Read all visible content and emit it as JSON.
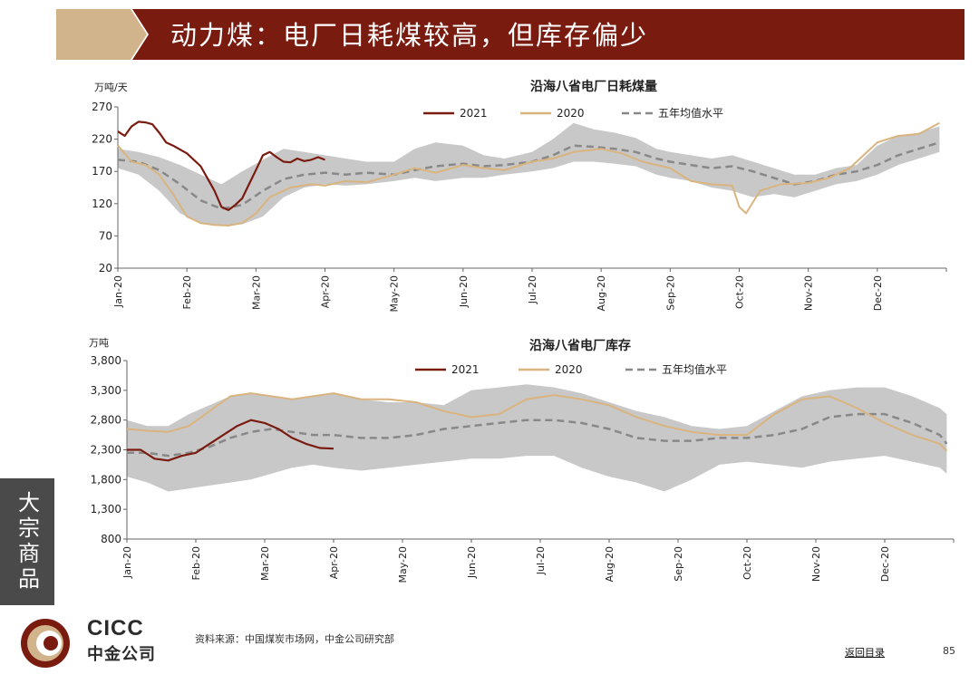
{
  "header": {
    "title": "动力煤：电厂日耗煤较高，但库存偏少",
    "colors": {
      "tan": "#d2b48c",
      "dark_red": "#7a1b10"
    }
  },
  "side_tab": {
    "label": "大宗商品"
  },
  "logo": {
    "en": "CICC",
    "cn": "中金公司",
    "colors": [
      "#7a1b10",
      "#d2b48c"
    ]
  },
  "footer": {
    "source": "资料来源：中国煤炭市场网，中金公司研究部",
    "back_link": "返回目录",
    "page_number": "85"
  },
  "chart_data": [
    {
      "type": "line",
      "title": "沿海八省电厂日耗煤量",
      "unit_label": "万吨/天",
      "ylim": [
        20,
        270
      ],
      "yticks": [
        "20",
        "70",
        "120",
        "170",
        "220",
        "270"
      ],
      "ytick_values": [
        20,
        70,
        120,
        170,
        220,
        270
      ],
      "months": [
        "Jan-20",
        "Feb-20",
        "Mar-20",
        "Apr-20",
        "May-20",
        "Jun-20",
        "Jul-20",
        "Aug-20",
        "Sep-20",
        "Oct-20",
        "Nov-20",
        "Dec-20"
      ],
      "legend": {
        "position": "top-center",
        "items": [
          "2021",
          "2020",
          "五年均值水平"
        ]
      },
      "colors": {
        "s2021": "#7a1b10",
        "s2020": "#d9b47f",
        "avg": "#888888",
        "band": "#c8c8c8"
      },
      "series": [
        {
          "name": "2021",
          "style": "solid",
          "x": [
            0,
            0.1,
            0.2,
            0.3,
            0.4,
            0.5,
            0.6,
            0.7,
            0.8,
            1.0,
            1.2,
            1.4,
            1.5,
            1.6,
            1.7,
            1.8,
            1.9,
            2.0,
            2.1,
            2.2,
            2.3,
            2.4,
            2.5,
            2.6,
            2.7,
            2.8,
            2.9,
            3.0
          ],
          "y": [
            232,
            225,
            240,
            247,
            246,
            243,
            230,
            215,
            210,
            198,
            178,
            140,
            115,
            110,
            118,
            128,
            150,
            172,
            195,
            200,
            192,
            185,
            184,
            190,
            186,
            188,
            192,
            188
          ]
        },
        {
          "name": "2020",
          "style": "solid",
          "x": [
            0,
            0.2,
            0.4,
            0.6,
            0.8,
            1.0,
            1.2,
            1.4,
            1.6,
            1.8,
            2.0,
            2.2,
            2.5,
            2.8,
            3.0,
            3.3,
            3.6,
            4.0,
            4.3,
            4.6,
            5.0,
            5.3,
            5.6,
            6.0,
            6.3,
            6.6,
            7.0,
            7.3,
            7.6,
            8.0,
            8.3,
            8.6,
            8.9,
            9.0,
            9.1,
            9.3,
            9.6,
            10.0,
            10.3,
            10.6,
            11.0,
            11.3,
            11.6,
            11.9
          ],
          "y": [
            210,
            185,
            180,
            165,
            135,
            100,
            90,
            87,
            86,
            90,
            105,
            130,
            145,
            150,
            148,
            155,
            153,
            165,
            175,
            168,
            180,
            175,
            172,
            185,
            190,
            200,
            205,
            198,
            185,
            175,
            155,
            150,
            148,
            115,
            105,
            140,
            150,
            152,
            160,
            175,
            215,
            225,
            228,
            245
          ]
        },
        {
          "name": "五年均值水平",
          "style": "dashed",
          "x": [
            0,
            0.3,
            0.6,
            0.9,
            1.2,
            1.5,
            1.8,
            2.1,
            2.4,
            2.7,
            3.0,
            3.3,
            3.6,
            4.0,
            4.3,
            4.6,
            5.0,
            5.3,
            5.6,
            6.0,
            6.3,
            6.6,
            6.9,
            7.2,
            7.5,
            7.8,
            8.0,
            8.3,
            8.6,
            8.9,
            9.2,
            9.5,
            9.8,
            10.1,
            10.4,
            10.7,
            11.0,
            11.3,
            11.6,
            11.9
          ],
          "y": [
            188,
            185,
            172,
            150,
            125,
            112,
            118,
            140,
            158,
            165,
            168,
            165,
            168,
            165,
            172,
            178,
            182,
            178,
            180,
            185,
            195,
            210,
            208,
            205,
            200,
            190,
            185,
            180,
            175,
            178,
            170,
            160,
            150,
            155,
            165,
            170,
            180,
            195,
            205,
            215
          ]
        }
      ],
      "band": {
        "name": "五年区间",
        "x": [
          0,
          0.3,
          0.6,
          0.9,
          1.2,
          1.5,
          1.8,
          2.1,
          2.4,
          2.7,
          3.0,
          3.3,
          3.6,
          4.0,
          4.3,
          4.6,
          5.0,
          5.3,
          5.6,
          6.0,
          6.3,
          6.6,
          6.9,
          7.2,
          7.5,
          7.8,
          8.0,
          8.3,
          8.6,
          8.9,
          9.2,
          9.5,
          9.8,
          10.1,
          10.4,
          10.7,
          11.0,
          11.3,
          11.6,
          11.9
        ],
        "upper": [
          205,
          200,
          192,
          180,
          165,
          150,
          170,
          188,
          205,
          200,
          195,
          190,
          185,
          185,
          205,
          215,
          210,
          195,
          190,
          200,
          220,
          245,
          235,
          230,
          222,
          205,
          200,
          195,
          190,
          195,
          185,
          175,
          165,
          165,
          175,
          180,
          210,
          225,
          230,
          240
        ],
        "lower": [
          175,
          165,
          140,
          105,
          90,
          85,
          88,
          100,
          130,
          145,
          150,
          148,
          150,
          155,
          160,
          155,
          160,
          160,
          165,
          170,
          175,
          185,
          185,
          182,
          178,
          165,
          160,
          155,
          145,
          140,
          130,
          135,
          130,
          140,
          150,
          155,
          165,
          180,
          190,
          200
        ]
      }
    },
    {
      "type": "line",
      "title": "沿海八省电厂库存",
      "unit_label": "万吨",
      "ylim": [
        800,
        3800
      ],
      "yticks": [
        "800",
        "1,300",
        "1,800",
        "2,300",
        "2,800",
        "3,300",
        "3,800"
      ],
      "ytick_values": [
        800,
        1300,
        1800,
        2300,
        2800,
        3300,
        3800
      ],
      "months": [
        "Jan-20",
        "Feb-20",
        "Mar-20",
        "Apr-20",
        "May-20",
        "Jun-20",
        "Jul-20",
        "Aug-20",
        "Sep-20",
        "Oct-20",
        "Nov-20",
        "Dec-20"
      ],
      "legend": {
        "position": "top-center",
        "items": [
          "2021",
          "2020",
          "五年均值水平"
        ]
      },
      "colors": {
        "s2021": "#7a1b10",
        "s2020": "#d9b47f",
        "avg": "#888888",
        "band": "#c8c8c8"
      },
      "series": [
        {
          "name": "2021",
          "style": "solid",
          "x": [
            0,
            0.2,
            0.4,
            0.6,
            0.8,
            1.0,
            1.2,
            1.4,
            1.6,
            1.8,
            2.0,
            2.2,
            2.4,
            2.6,
            2.8,
            3.0
          ],
          "y": [
            2300,
            2300,
            2150,
            2120,
            2200,
            2250,
            2400,
            2550,
            2700,
            2800,
            2750,
            2650,
            2500,
            2400,
            2330,
            2320
          ]
        },
        {
          "name": "2020",
          "style": "solid",
          "x": [
            0,
            0.3,
            0.6,
            0.9,
            1.2,
            1.5,
            1.8,
            2.1,
            2.4,
            2.7,
            3.0,
            3.4,
            3.8,
            4.2,
            4.6,
            5.0,
            5.4,
            5.8,
            6.2,
            6.6,
            7.0,
            7.4,
            7.8,
            8.2,
            8.6,
            9.0,
            9.4,
            9.8,
            10.2,
            10.6,
            11.0,
            11.4,
            11.8,
            11.9
          ],
          "y": [
            2650,
            2620,
            2600,
            2700,
            2950,
            3200,
            3250,
            3200,
            3150,
            3200,
            3250,
            3150,
            3150,
            3100,
            2950,
            2850,
            2900,
            3150,
            3220,
            3150,
            3050,
            2850,
            2700,
            2600,
            2550,
            2550,
            2900,
            3150,
            3200,
            3000,
            2750,
            2550,
            2400,
            2280
          ]
        },
        {
          "name": "五年均值水平",
          "style": "dashed",
          "x": [
            0,
            0.3,
            0.6,
            0.9,
            1.2,
            1.5,
            1.8,
            2.1,
            2.4,
            2.7,
            3.0,
            3.4,
            3.8,
            4.2,
            4.6,
            5.0,
            5.4,
            5.8,
            6.2,
            6.6,
            7.0,
            7.4,
            7.8,
            8.2,
            8.6,
            9.0,
            9.4,
            9.8,
            10.2,
            10.6,
            11.0,
            11.4,
            11.8,
            11.9
          ],
          "y": [
            2250,
            2250,
            2200,
            2250,
            2350,
            2500,
            2600,
            2650,
            2600,
            2550,
            2550,
            2500,
            2500,
            2550,
            2650,
            2700,
            2750,
            2800,
            2800,
            2750,
            2650,
            2500,
            2450,
            2450,
            2500,
            2500,
            2550,
            2650,
            2850,
            2900,
            2900,
            2750,
            2550,
            2400
          ]
        }
      ],
      "band": {
        "name": "五年区间",
        "x": [
          0,
          0.3,
          0.6,
          0.9,
          1.2,
          1.5,
          1.8,
          2.1,
          2.4,
          2.7,
          3.0,
          3.4,
          3.8,
          4.2,
          4.6,
          5.0,
          5.4,
          5.8,
          6.2,
          6.6,
          7.0,
          7.4,
          7.8,
          8.2,
          8.6,
          9.0,
          9.4,
          9.8,
          10.2,
          10.6,
          11.0,
          11.4,
          11.8,
          11.9
        ],
        "upper": [
          2800,
          2700,
          2700,
          2900,
          3050,
          3200,
          3250,
          3200,
          3150,
          3200,
          3250,
          3150,
          3100,
          3100,
          3050,
          3300,
          3350,
          3400,
          3350,
          3250,
          3100,
          2950,
          2850,
          2700,
          2650,
          2700,
          2950,
          3200,
          3300,
          3350,
          3350,
          3200,
          3000,
          2900
        ],
        "lower": [
          1850,
          1750,
          1600,
          1650,
          1700,
          1750,
          1800,
          1900,
          2000,
          2050,
          2000,
          1950,
          2000,
          2050,
          2100,
          2150,
          2150,
          2200,
          2200,
          2000,
          1850,
          1750,
          1600,
          1800,
          2050,
          2100,
          2050,
          2000,
          2100,
          2150,
          2200,
          2100,
          2000,
          1900
        ]
      }
    }
  ]
}
